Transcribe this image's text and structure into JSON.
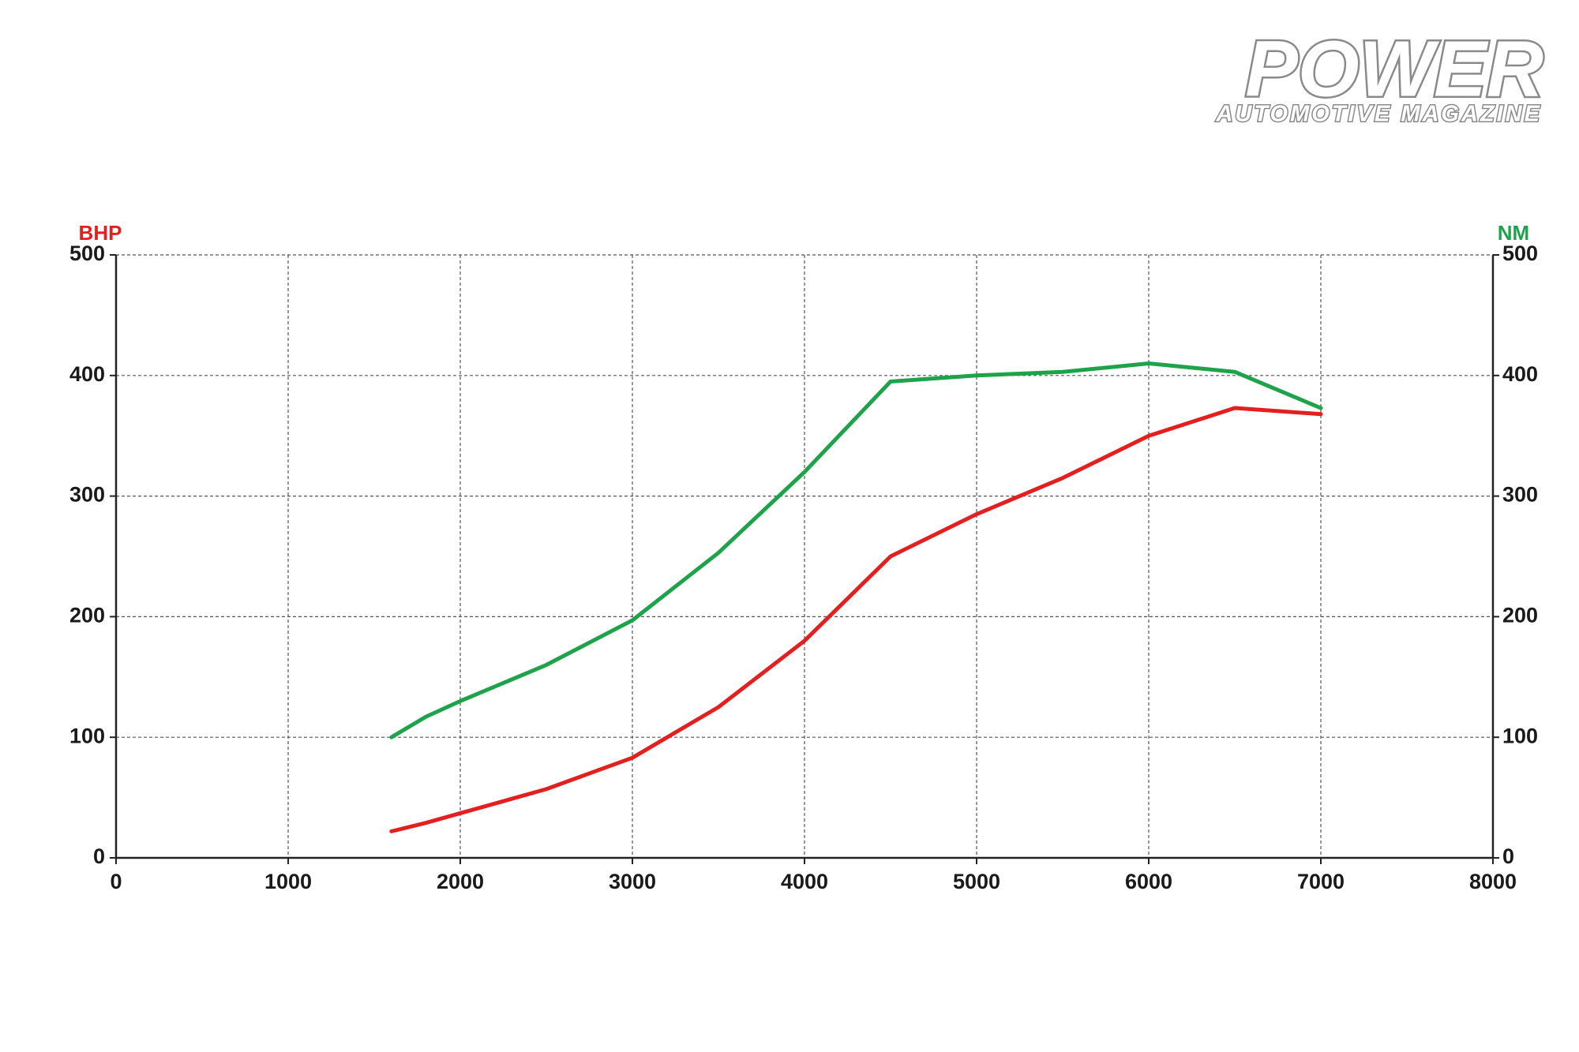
{
  "chart_data": {
    "type": "line",
    "annotations": [
      "POWER",
      "AUTOMOTIVE MAGAZINE"
    ],
    "y_label": "BHP",
    "y2_label": "NM",
    "x": [
      1600,
      1800,
      2000,
      2500,
      3000,
      3500,
      4000,
      4500,
      5000,
      5500,
      6000,
      6500,
      7000
    ],
    "series": [
      {
        "name": "BHP",
        "color": "#e3201f",
        "values": [
          22,
          29,
          37,
          57,
          83,
          125,
          180,
          250,
          285,
          315,
          350,
          373,
          368
        ]
      },
      {
        "name": "NM",
        "color": "#1ea34a",
        "axis": "y2",
        "values": [
          100,
          117,
          130,
          160,
          197,
          253,
          320,
          395,
          400,
          403,
          410,
          403,
          373
        ]
      }
    ],
    "xlim": [
      0,
      8000
    ],
    "xticks": [
      0,
      1000,
      2000,
      3000,
      4000,
      5000,
      6000,
      7000,
      8000
    ],
    "ylim": [
      0,
      500
    ],
    "yticks": [
      0,
      100,
      200,
      300,
      400,
      500
    ],
    "y2lim": [
      0,
      500
    ],
    "y2ticks": [
      0,
      100,
      200,
      300,
      400,
      500
    ],
    "grid": true
  }
}
